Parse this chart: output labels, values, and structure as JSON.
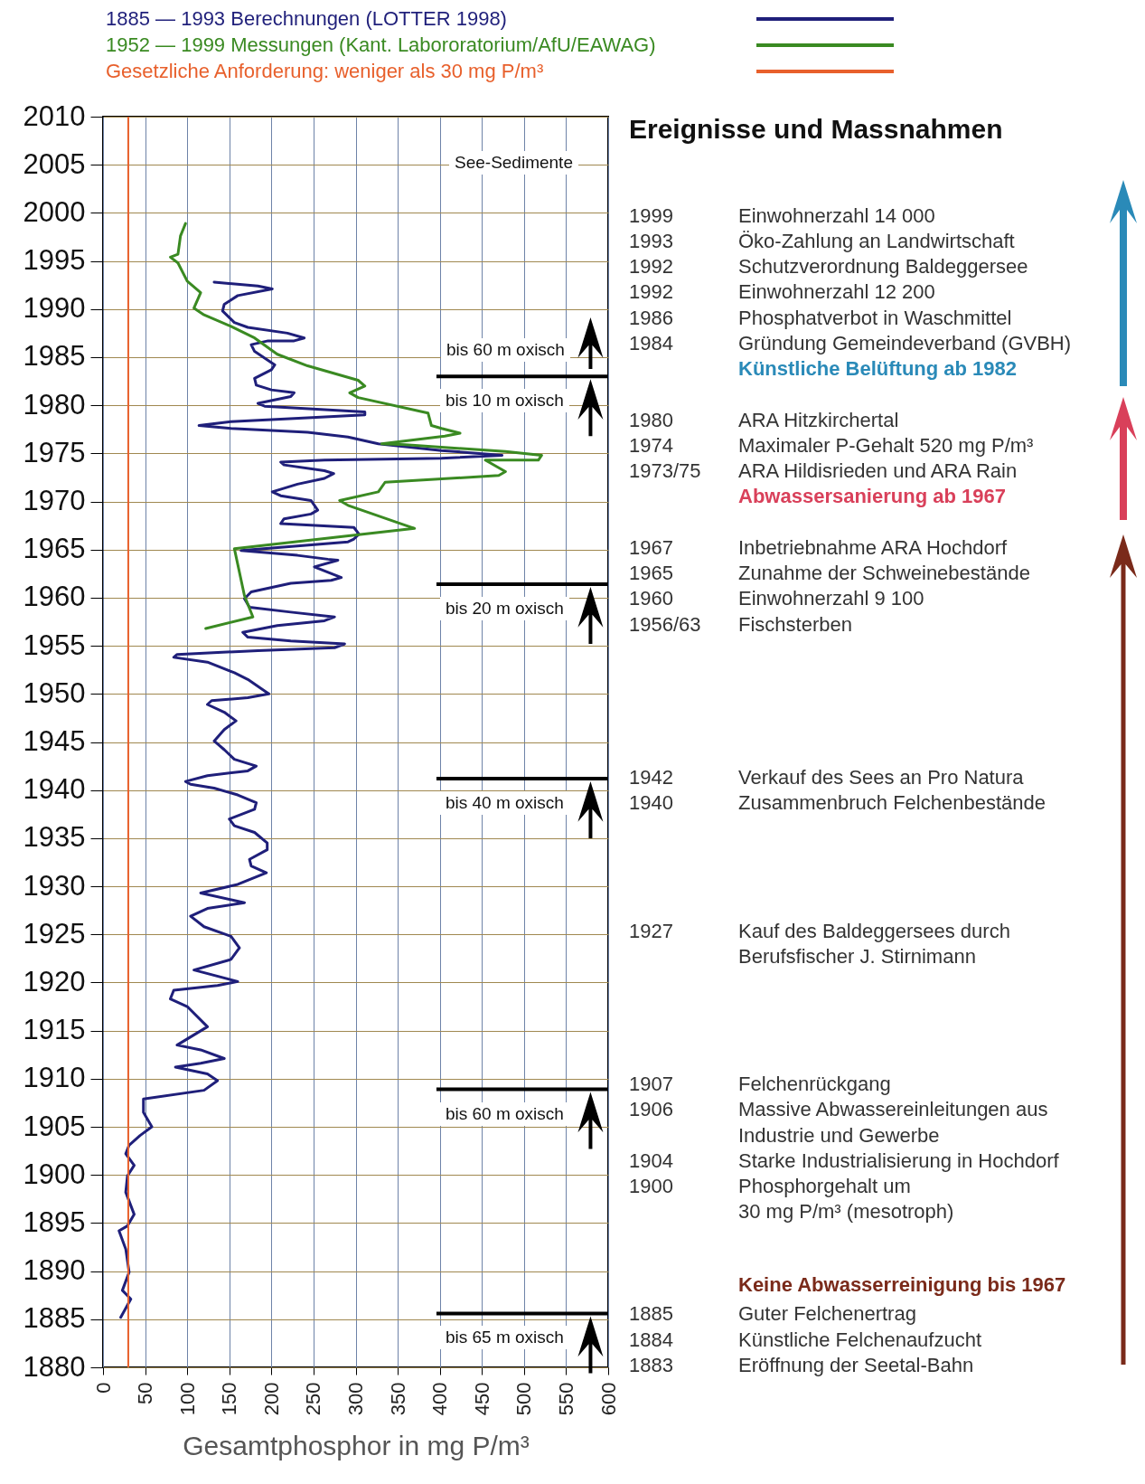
{
  "chart_data": {
    "type": "line",
    "xlabel": "Gesamtphosphor in mg P/m³",
    "xlim": [
      0,
      600
    ],
    "xticks": [
      0,
      50,
      100,
      150,
      200,
      250,
      300,
      350,
      400,
      450,
      500,
      550,
      600
    ],
    "ylim": [
      1880,
      2010
    ],
    "yticks": [
      1880,
      1885,
      1890,
      1895,
      1900,
      1905,
      1910,
      1915,
      1920,
      1925,
      1930,
      1935,
      1940,
      1945,
      1950,
      1955,
      1960,
      1965,
      1970,
      1975,
      1980,
      1985,
      1990,
      1995,
      2000,
      2005,
      2010
    ],
    "grid": true,
    "legend": "top",
    "series": [
      {
        "name": "1885 — 1993 Berechnungen (LOTTER 1998)",
        "color": "#1f1f7a",
        "x": [
          132,
          184,
          201,
          160,
          144,
          142,
          156,
          172,
          219,
          239,
          227,
          196,
          176,
          180,
          192,
          204,
          200,
          180,
          182,
          200,
          227,
          223,
          184,
          192,
          311,
          311,
          243,
          152,
          114,
          152,
          243,
          291,
          327,
          402,
          474,
          402,
          263,
          211,
          215,
          263,
          274,
          263,
          231,
          201,
          211,
          247,
          255,
          247,
          215,
          211,
          298,
          304,
          298,
          291,
          164,
          231,
          267,
          279,
          251,
          283,
          271,
          223,
          176,
          168,
          174,
          223,
          275,
          263,
          207,
          166,
          172,
          223,
          287,
          275,
          184,
          88,
          84,
          124,
          156,
          172,
          197,
          172,
          129,
          124,
          144,
          158,
          144,
          132,
          144,
          156,
          182,
          172,
          124,
          98,
          104,
          132,
          160,
          182,
          180,
          150,
          156,
          180,
          195,
          195,
          174,
          176,
          194,
          160,
          116,
          168,
          124,
          104,
          120,
          152,
          162,
          152,
          108,
          160,
          136,
          84,
          80,
          100,
          124,
          88,
          116,
          144,
          116,
          86,
          124,
          136,
          120,
          48,
          48,
          58,
          44,
          31,
          27,
          37,
          29,
          27,
          37,
          29,
          19,
          27,
          31,
          23,
          33,
          21
        ],
        "values": [
          1992.8,
          1992.4,
          1992.1,
          1991.4,
          1990.5,
          1989.8,
          1988.6,
          1988.1,
          1987.5,
          1987,
          1986.7,
          1986.7,
          1986.3,
          1985.6,
          1984.9,
          1984.2,
          1983.7,
          1982.8,
          1982.1,
          1981.6,
          1981.3,
          1980.9,
          1980.2,
          1979.9,
          1979.3,
          1979,
          1978.7,
          1978.3,
          1977.9,
          1977.6,
          1977.2,
          1976.7,
          1976,
          1975.3,
          1974.8,
          1974.5,
          1974.3,
          1974.1,
          1973.8,
          1973.2,
          1972.9,
          1972.4,
          1971.8,
          1971,
          1970.6,
          1970.1,
          1969.1,
          1968.7,
          1968.2,
          1967.7,
          1967.3,
          1966.6,
          1966.1,
          1965.8,
          1964.9,
          1964.4,
          1964,
          1963.9,
          1963.2,
          1962.1,
          1961.8,
          1961.5,
          1960.6,
          1959.9,
          1959,
          1958.5,
          1958,
          1957.6,
          1957.1,
          1956.4,
          1955.9,
          1955.5,
          1955.2,
          1954.8,
          1954.5,
          1954.1,
          1953.8,
          1953.3,
          1952.2,
          1951.5,
          1950,
          1949.6,
          1949.3,
          1948.9,
          1948.1,
          1947.2,
          1946.3,
          1945.1,
          1944.2,
          1943.2,
          1942.5,
          1942,
          1941.5,
          1940.9,
          1940.6,
          1940.2,
          1939.5,
          1938.7,
          1938,
          1937,
          1936.3,
          1935.6,
          1934.5,
          1933.8,
          1932.8,
          1932.1,
          1931.4,
          1930.2,
          1929.3,
          1928.3,
          1927.7,
          1926.9,
          1925.8,
          1924.8,
          1923.6,
          1922.4,
          1921.3,
          1920.1,
          1919.7,
          1919.2,
          1918.3,
          1917.5,
          1915.4,
          1913.5,
          1913,
          1912.1,
          1911.6,
          1911.2,
          1910.5,
          1909.8,
          1908.8,
          1907.9,
          1906.5,
          1905,
          1904.1,
          1903.1,
          1902.2,
          1901,
          1899.9,
          1898.2,
          1895.9,
          1894.7,
          1894.2,
          1892.3,
          1889.9,
          1888,
          1887.1,
          1885.2
        ]
      },
      {
        "name": "1952 — 1999 Messungen (Kant. Labororatorium/AfU/EAWAG)",
        "color": "#3a8a22",
        "x": [
          98,
          92,
          89,
          80,
          89,
          100,
          116,
          108,
          120,
          152,
          180,
          207,
          243,
          303,
          311,
          293,
          303,
          386,
          390,
          402,
          424,
          406,
          331,
          359,
          478,
          521,
          517,
          454,
          478,
          470,
          335,
          327,
          281,
          291,
          370,
          156,
          168,
          178,
          122
        ],
        "values": [
          1998.9,
          1997.6,
          1995.7,
          1995.4,
          1994.8,
          1992.9,
          1991.7,
          1990.1,
          1989.4,
          1988.2,
          1987,
          1985.3,
          1984.1,
          1982.6,
          1982,
          1981.3,
          1980.8,
          1979.2,
          1977.9,
          1977.6,
          1977.1,
          1976.8,
          1976,
          1975.9,
          1975.2,
          1974.8,
          1974.3,
          1974.3,
          1973.1,
          1972.7,
          1972,
          1971,
          1970.1,
          1969.6,
          1967.2,
          1965.1,
          1960.2,
          1958,
          1956.8
        ]
      }
    ],
    "ref_lines": [
      {
        "axis": "x",
        "value": 30,
        "label": "Gesetzliche Anforderung: weniger als 30 mg P/m³",
        "color": "#e8602c"
      },
      {
        "axis": "y",
        "value": 1983,
        "label": "bis 10 m oxisch",
        "color": "#000000"
      },
      {
        "axis": "y",
        "value": 1961.4,
        "label": "bis 20 m oxisch",
        "color": "#000000"
      },
      {
        "axis": "y",
        "value": 1941.2,
        "label": "bis 40 m oxisch",
        "color": "#000000"
      },
      {
        "axis": "y",
        "value": 1908.9,
        "label": "bis 60 m oxisch",
        "color": "#000000"
      },
      {
        "axis": "y",
        "value": 1885.6,
        "label": "bis 65 m oxisch",
        "color": "#000000"
      }
    ],
    "annotations": [
      "See-Sedimente",
      "bis 60 m oxisch",
      "Ereignisse und Massnahmen",
      "1999",
      "Einwohnerzahl 14 000",
      "1993",
      "Öko-Zahlung an Landwirtschaft",
      "1992",
      "Schutzverordnung Baldeggersee",
      "1992",
      "Einwohnerzahl 12 200",
      "1986",
      "Phosphatverbot in Waschmittel",
      "1984",
      "Gründung Gemeindeverband (GVBH)",
      "Künstliche Belüftung ab 1982",
      "1980",
      "ARA Hitzkirchertal",
      "1974",
      "Maximaler P-Gehalt 520 mg P/m³",
      "1973/75",
      "ARA Hildisrieden und ARA Rain",
      "Abwassersanierung ab 1967",
      "1967",
      "Inbetriebnahme ARA Hochdorf",
      "1965",
      "Zunahme der Schweinebestände",
      "1960",
      "Einwohnerzahl 9 100",
      "1956/63",
      "Fischsterben",
      "1942",
      "Verkauf des Sees an Pro Natura",
      "1940",
      "Zusammenbruch Felchenbestände",
      "1927",
      "Kauf des Baldeggersees durch",
      "Berufsfischer J. Stirnimann",
      "1907",
      "Felchenrückgang",
      "1906",
      "Massive Abwassereinleitungen aus",
      "Industrie und Gewerbe",
      "1904",
      "Starke Industrialisierung in Hochdorf",
      "1900",
      "Phosphorgehalt um",
      "30 mg P/m³ (mesotroph)",
      "Keine Abwasserreinigung bis 1967",
      "1885",
      "Guter Felchenertrag",
      "1884",
      "Künstliche Felchenaufzucht",
      "1883",
      "Eröffnung der Seetal-Bahn"
    ]
  }
}
